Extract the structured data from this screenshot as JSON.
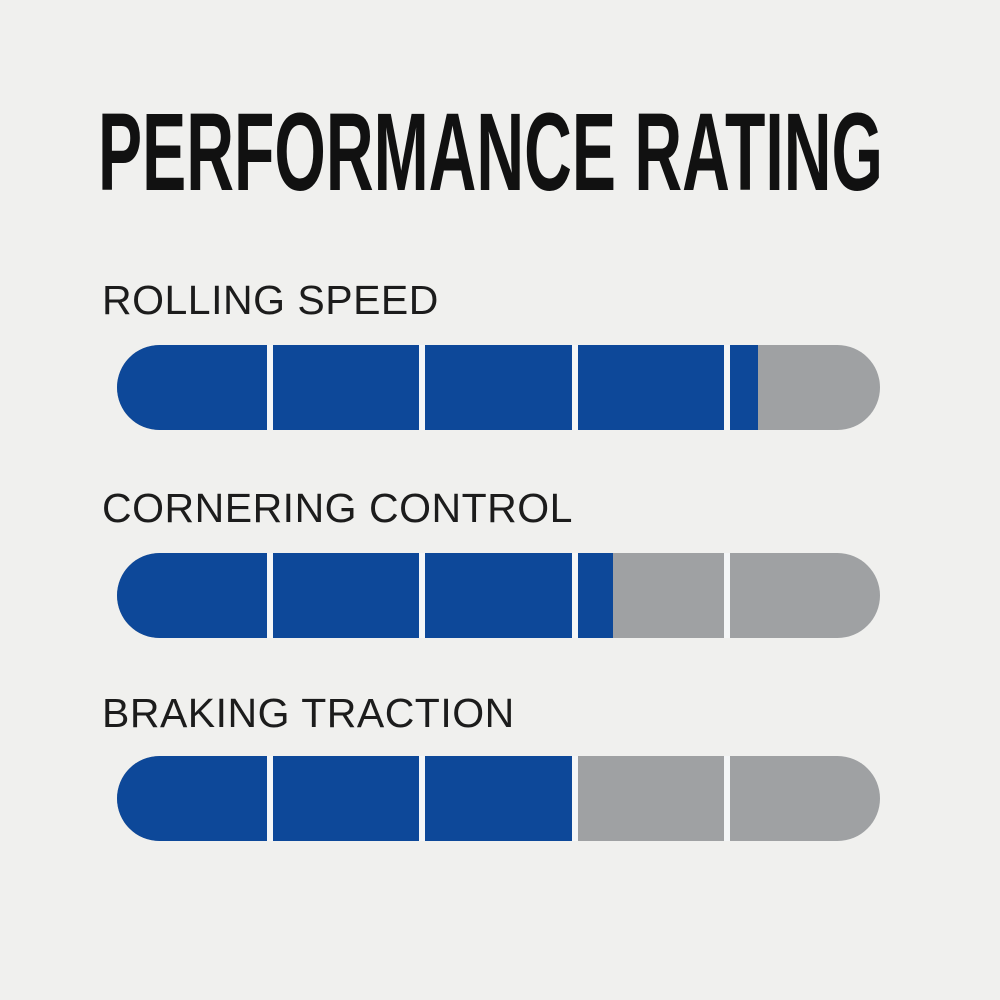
{
  "title": "PERFORMANCE RATING",
  "chart_data": {
    "type": "bar",
    "subtype": "segmented-rating-pills",
    "title": "PERFORMANCE RATING",
    "categories": [
      "ROLLING SPEED",
      "CORNERING CONTROL",
      "BRAKING TRACTION"
    ],
    "values": [
      4.2,
      3.25,
      3.0
    ],
    "max": 5,
    "segments_per_bar": 5,
    "legend": "none",
    "colors": {
      "background": "#f0f0ee",
      "title": "#111111",
      "label": "#1c1c1c",
      "fill": "#0d4899",
      "track": "#9fa1a3",
      "divider": "#f4f6f7"
    }
  }
}
